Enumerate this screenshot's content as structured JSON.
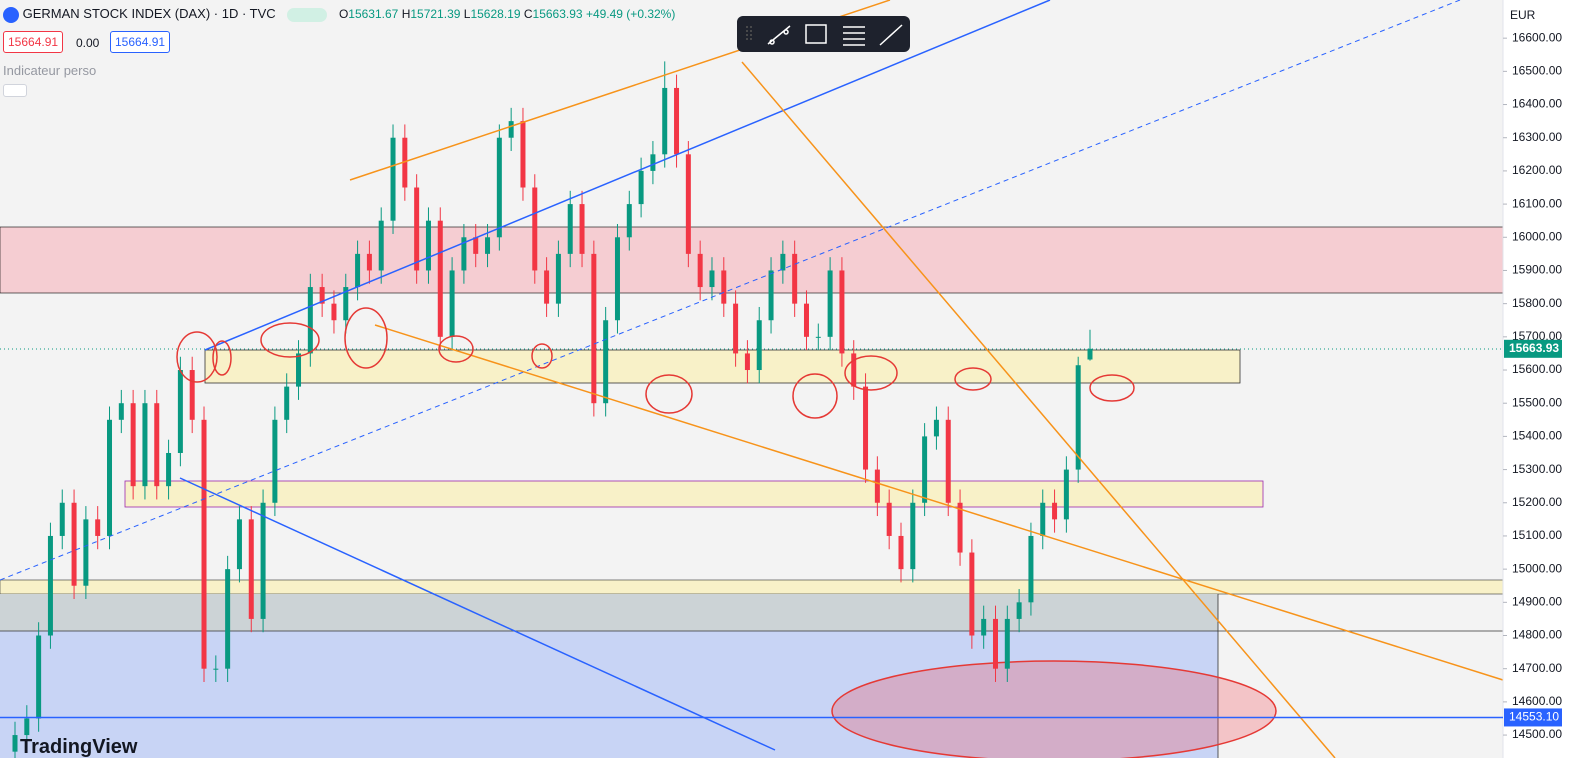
{
  "header": {
    "title": "GERMAN STOCK INDEX (DAX) · 1D · TVC",
    "ohlc_labels": [
      "O",
      "H",
      "L",
      "C"
    ],
    "change": "+49.49 (+0.32%)",
    "sell": "15664.91",
    "spread": "0.00",
    "buy": "15664.91",
    "indicator": "Indicateur perso",
    "currency": "EUR",
    "brand": "TradingView"
  },
  "chart_data": {
    "type": "candlestick",
    "ylim": [
      14455,
      16715
    ],
    "yticks": [
      {
        "value": 14500,
        "label": "14500.00"
      },
      {
        "value": 14600,
        "label": "14600.00"
      },
      {
        "value": 14700,
        "label": "14700.00"
      },
      {
        "value": 14800,
        "label": "14800.00"
      },
      {
        "value": 14900,
        "label": "14900.00"
      },
      {
        "value": 15000,
        "label": "15000.00"
      },
      {
        "value": 15100,
        "label": "15100.00"
      },
      {
        "value": 15200,
        "label": "15200.00"
      },
      {
        "value": 15300,
        "label": "15300.00"
      },
      {
        "value": 15400,
        "label": "15400.00"
      },
      {
        "value": 15500,
        "label": "15500.00"
      },
      {
        "value": 15600,
        "label": "15600.00"
      },
      {
        "value": 15700,
        "label": "15700.00"
      },
      {
        "value": 15800,
        "label": "15800.00"
      },
      {
        "value": 15900,
        "label": "15900.00"
      },
      {
        "value": 16000,
        "label": "16000.00"
      },
      {
        "value": 16100,
        "label": "16100.00"
      },
      {
        "value": 16200,
        "label": "16200.00"
      },
      {
        "value": 16300,
        "label": "16300.00"
      },
      {
        "value": 16400,
        "label": "16400.00"
      },
      {
        "value": 16500,
        "label": "16500.00"
      },
      {
        "value": 16600,
        "label": "16600.00"
      }
    ],
    "up_color": "#089981",
    "down_color": "#f23645",
    "hline": {
      "value": 14553.1,
      "label": "14553.10",
      "color": "#2962ff"
    },
    "series": [
      {
        "values": [
          [
            14450,
            14540,
            14410,
            14500
          ],
          [
            14500,
            14590,
            14460,
            14550
          ],
          [
            14550,
            14840,
            14510,
            14800
          ],
          [
            14800,
            15140,
            14760,
            15100
          ],
          [
            15100,
            15240,
            15060,
            15200
          ],
          [
            15200,
            15240,
            14910,
            14950
          ],
          [
            14950,
            15190,
            14910,
            15150
          ],
          [
            15150,
            15190,
            15060,
            15100
          ],
          [
            15100,
            15490,
            15060,
            15450
          ],
          [
            15450,
            15540,
            15410,
            15500
          ],
          [
            15500,
            15540,
            15210,
            15250
          ],
          [
            15250,
            15540,
            15210,
            15500
          ],
          [
            15500,
            15540,
            15210,
            15250
          ],
          [
            15250,
            15390,
            15210,
            15350
          ],
          [
            15350,
            15640,
            15310,
            15600
          ],
          [
            15600,
            15640,
            15410,
            15450
          ],
          [
            15450,
            15490,
            14660,
            14700
          ],
          [
            14700,
            14740,
            14660,
            14700
          ],
          [
            14700,
            15040,
            14660,
            15000
          ],
          [
            15000,
            15190,
            14960,
            15150
          ],
          [
            15150,
            15190,
            14810,
            14850
          ],
          [
            14850,
            15240,
            14810,
            15200
          ],
          [
            15200,
            15490,
            15160,
            15450
          ],
          [
            15450,
            15590,
            15410,
            15550
          ],
          [
            15550,
            15690,
            15510,
            15650
          ],
          [
            15650,
            15890,
            15610,
            15850
          ],
          [
            15850,
            15890,
            15760,
            15800
          ],
          [
            15800,
            15840,
            15710,
            15750
          ],
          [
            15750,
            15890,
            15710,
            15850
          ],
          [
            15850,
            15990,
            15810,
            15950
          ],
          [
            15950,
            15990,
            15860,
            15900
          ],
          [
            15900,
            16090,
            15860,
            16050
          ],
          [
            16050,
            16340,
            16010,
            16300
          ],
          [
            16300,
            16340,
            16110,
            16150
          ],
          [
            16150,
            16190,
            15860,
            15900
          ],
          [
            15900,
            16090,
            15860,
            16050
          ],
          [
            16050,
            16090,
            15660,
            15700
          ],
          [
            15700,
            15940,
            15660,
            15900
          ],
          [
            15900,
            16040,
            15860,
            16000
          ],
          [
            16000,
            16040,
            15910,
            15950
          ],
          [
            15950,
            16040,
            15910,
            16000
          ],
          [
            16000,
            16340,
            15960,
            16300
          ],
          [
            16300,
            16390,
            16260,
            16350
          ],
          [
            16350,
            16390,
            16110,
            16150
          ],
          [
            16150,
            16190,
            15860,
            15900
          ],
          [
            15900,
            15940,
            15760,
            15800
          ],
          [
            15800,
            15990,
            15760,
            15950
          ],
          [
            15950,
            16140,
            15910,
            16100
          ],
          [
            16100,
            16140,
            15910,
            15950
          ],
          [
            15950,
            15990,
            15460,
            15500
          ],
          [
            15500,
            15790,
            15460,
            15750
          ],
          [
            15750,
            16040,
            15710,
            16000
          ],
          [
            16000,
            16140,
            15960,
            16100
          ],
          [
            16100,
            16240,
            16060,
            16200
          ],
          [
            16200,
            16290,
            16160,
            16250
          ],
          [
            16250,
            16530,
            16210,
            16450
          ],
          [
            16450,
            16490,
            16210,
            16250
          ],
          [
            16250,
            16290,
            15910,
            15950
          ],
          [
            15950,
            15990,
            15810,
            15850
          ],
          [
            15850,
            15940,
            15810,
            15900
          ],
          [
            15900,
            15940,
            15760,
            15800
          ],
          [
            15800,
            15840,
            15610,
            15650
          ],
          [
            15650,
            15690,
            15560,
            15600
          ],
          [
            15600,
            15790,
            15560,
            15750
          ],
          [
            15750,
            15940,
            15710,
            15900
          ],
          [
            15900,
            15990,
            15860,
            15950
          ],
          [
            15950,
            15990,
            15760,
            15800
          ],
          [
            15800,
            15840,
            15660,
            15700
          ],
          [
            15700,
            15740,
            15660,
            15700
          ],
          [
            15700,
            15940,
            15660,
            15900
          ],
          [
            15900,
            15940,
            15610,
            15650
          ],
          [
            15650,
            15690,
            15510,
            15550
          ],
          [
            15550,
            15590,
            15260,
            15300
          ],
          [
            15300,
            15340,
            15160,
            15200
          ],
          [
            15200,
            15240,
            15060,
            15100
          ],
          [
            15100,
            15140,
            14960,
            15000
          ],
          [
            15000,
            15240,
            14960,
            15200
          ],
          [
            15200,
            15440,
            15160,
            15400
          ],
          [
            15400,
            15490,
            15360,
            15450
          ],
          [
            15450,
            15490,
            15160,
            15200
          ],
          [
            15200,
            15240,
            15010,
            15050
          ],
          [
            15050,
            15090,
            14760,
            14800
          ],
          [
            14800,
            14890,
            14760,
            14850
          ],
          [
            14850,
            14890,
            14660,
            14700
          ],
          [
            14700,
            14890,
            14660,
            14850
          ],
          [
            14850,
            14940,
            14810,
            14900
          ],
          [
            14900,
            15140,
            14860,
            15100
          ],
          [
            15100,
            15240,
            15060,
            15200
          ],
          [
            15200,
            15240,
            15110,
            15150
          ],
          [
            15150,
            15340,
            15110,
            15300
          ],
          [
            15300,
            15640,
            15260,
            15614.44
          ],
          [
            15631.67,
            15721.39,
            15628.19,
            15663.93
          ]
        ]
      }
    ]
  }
}
